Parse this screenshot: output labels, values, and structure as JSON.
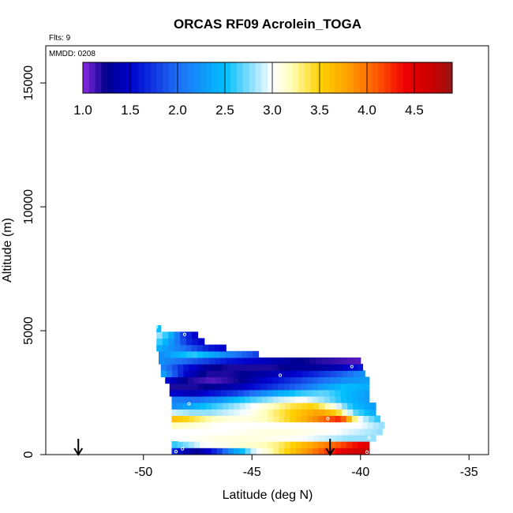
{
  "chart_data": {
    "type": "heatmap",
    "title": "ORCAS RF09 Acrolein_TOGA",
    "annotations": {
      "flights": "Flts: 9",
      "date": "MMDD: 0208"
    },
    "xlabel": "Latitude (deg N)",
    "ylabel": "Altitude (m)",
    "xlim": [
      -54.5,
      -34.1
    ],
    "ylim": [
      0,
      16500
    ],
    "xticks": [
      -50,
      -45,
      -40,
      -35
    ],
    "yticks": [
      0,
      5000,
      10000,
      15000
    ],
    "colorbar": {
      "range": [
        1.0,
        4.9
      ],
      "ticks": [
        "1.0",
        "1.5",
        "2.0",
        "2.5",
        "3.0",
        "3.5",
        "4.0",
        "4.5"
      ],
      "tick_values": [
        1.0,
        1.5,
        2.0,
        2.5,
        3.0,
        3.5,
        4.0,
        4.5
      ]
    },
    "arrows_lat": [
      -53.0,
      -41.4
    ],
    "cell_size": {
      "lat": 0.26,
      "alt": 260
    },
    "rows": [
      {
        "alt": 150,
        "lat_min": -48.7,
        "lat_max": -39.6,
        "values": [
          1.7,
          1.4,
          1.3,
          1.5,
          1.8,
          2.2,
          2.5,
          2.9,
          3.1,
          3.3,
          3.5,
          3.7,
          3.9,
          4.1,
          4.3,
          4.5,
          4.6,
          4.7
        ]
      },
      {
        "alt": 410,
        "lat_min": -48.7,
        "lat_max": -39.6,
        "values": [
          2.6,
          2.8,
          3.0,
          3.05,
          3.1,
          3.15,
          3.2,
          3.3,
          3.5,
          3.7,
          3.9,
          4.1,
          4.3,
          4.5
        ]
      },
      {
        "alt": 670,
        "lat_min": -48.4,
        "lat_max": -39.3,
        "values": [
          3.0,
          3.05,
          3.1,
          3.1,
          3.05,
          3.0,
          2.9,
          2.8,
          2.8
        ]
      },
      {
        "alt": 930,
        "lat_min": -48.4,
        "lat_max": -39.0,
        "values": [
          3.0,
          3.0,
          3.0,
          3.05,
          3.1,
          3.1,
          3.05,
          3.0,
          2.9,
          2.8
        ]
      },
      {
        "alt": 1190,
        "lat_min": -48.7,
        "lat_max": -38.9,
        "values": [
          3.2,
          3.1,
          3.0,
          3.0,
          3.0,
          3.0,
          3.0,
          3.0,
          3.0,
          2.8
        ]
      },
      {
        "alt": 1450,
        "lat_min": -48.7,
        "lat_max": -39.1,
        "values": [
          3.6,
          3.4,
          3.2,
          3.1,
          3.1,
          3.2,
          3.4,
          3.7,
          4.0,
          4.3,
          3.0,
          2.6
        ]
      },
      {
        "alt": 1710,
        "lat_min": -48.7,
        "lat_max": -39.3,
        "values": [
          2.9,
          2.8,
          2.8,
          2.9,
          3.0,
          3.2,
          3.4,
          3.6,
          3.8,
          3.5,
          2.7,
          2.4
        ]
      },
      {
        "alt": 1970,
        "lat_min": -48.7,
        "lat_max": -39.3,
        "values": [
          2.2,
          2.4,
          2.6,
          2.8,
          3.0,
          3.2,
          3.4,
          3.5,
          3.1,
          2.5,
          2.3
        ]
      },
      {
        "alt": 2230,
        "lat_min": -48.7,
        "lat_max": -39.6,
        "values": [
          2.1,
          2.0,
          2.2,
          2.5,
          2.7,
          2.9,
          3.0,
          2.8,
          2.5,
          2.3
        ]
      },
      {
        "alt": 2490,
        "lat_min": -48.8,
        "lat_max": -39.6,
        "values": [
          1.5,
          1.4,
          1.6,
          1.8,
          2.1,
          2.4,
          2.6,
          2.7,
          2.5,
          2.3
        ]
      },
      {
        "alt": 2750,
        "lat_min": -48.8,
        "lat_max": -39.6,
        "values": [
          1.2,
          1.2,
          1.3,
          1.4,
          1.6,
          1.8,
          2.0,
          2.3,
          2.5,
          2.4
        ]
      },
      {
        "alt": 3010,
        "lat_min": -49.0,
        "lat_max": -39.6,
        "values": [
          1.5,
          1.2,
          1.1,
          1.2,
          1.4,
          1.6,
          1.8,
          2.0,
          2.2,
          2.3
        ]
      },
      {
        "alt": 3270,
        "lat_min": -49.2,
        "lat_max": -39.8,
        "values": [
          2.3,
          1.5,
          1.2,
          1.2,
          1.3,
          1.4,
          1.5,
          1.7,
          1.9,
          2.2
        ]
      },
      {
        "alt": 3530,
        "lat_min": -49.2,
        "lat_max": -39.9,
        "values": [
          2.1,
          1.6,
          1.3,
          1.2,
          1.2,
          1.2,
          1.3,
          1.3,
          1.4,
          1.6
        ]
      },
      {
        "alt": 3790,
        "lat_min": -49.3,
        "lat_max": -40.0,
        "values": [
          2.2,
          2.0,
          1.8,
          1.6,
          1.5,
          1.4,
          1.3,
          1.2,
          1.15,
          1.1
        ]
      },
      {
        "alt": 4050,
        "lat_min": -49.3,
        "lat_max": -44.7,
        "values": [
          2.2,
          2.4,
          2.6,
          2.4,
          2.2,
          2.0,
          1.8
        ]
      },
      {
        "alt": 4310,
        "lat_min": -49.4,
        "lat_max": -46.2,
        "values": [
          2.4,
          2.2,
          2.0,
          1.8,
          1.6,
          1.5
        ]
      },
      {
        "alt": 4570,
        "lat_min": -49.4,
        "lat_max": -47.2,
        "values": [
          2.6,
          2.2,
          1.7,
          1.5
        ]
      },
      {
        "alt": 4830,
        "lat_min": -49.4,
        "lat_max": -47.5,
        "values": [
          2.8,
          2.4,
          1.8,
          1.5
        ]
      },
      {
        "alt": 5090,
        "lat_min": -49.4,
        "lat_max": -49.2,
        "values": [
          2.5
        ]
      }
    ],
    "sample_points": [
      {
        "lat": -49.4,
        "alt": 5150
      },
      {
        "lat": -48.1,
        "alt": 4850
      },
      {
        "lat": -49.3,
        "alt": 3250
      },
      {
        "lat": -43.7,
        "alt": 3200
      },
      {
        "lat": -40.4,
        "alt": 3550
      },
      {
        "lat": -47.9,
        "alt": 2050
      },
      {
        "lat": -41.5,
        "alt": 1450
      },
      {
        "lat": -39.6,
        "alt": 680
      },
      {
        "lat": -48.2,
        "alt": 230
      },
      {
        "lat": -48.5,
        "alt": 120
      },
      {
        "lat": -39.7,
        "alt": 100
      }
    ]
  }
}
